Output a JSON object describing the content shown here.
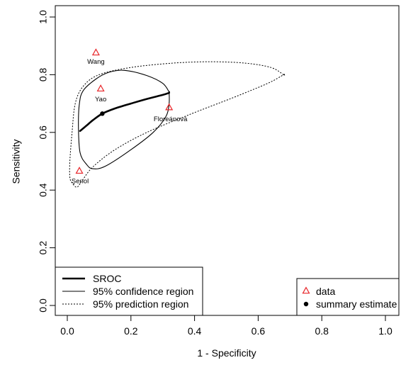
{
  "chart_data": {
    "type": "scatter",
    "title": "",
    "xlabel": "1 - Specificity",
    "ylabel": "Sensitivity",
    "xlim": [
      0.0,
      1.0
    ],
    "ylim": [
      0.0,
      1.0
    ],
    "xticks": [
      "0.0",
      "0.2",
      "0.4",
      "0.6",
      "0.8",
      "1.0"
    ],
    "yticks": [
      "0.0",
      "0.2",
      "0.4",
      "0.6",
      "0.8",
      "1.0"
    ],
    "grid": false,
    "data_points": [
      {
        "label": "Wang",
        "x": 0.09,
        "y": 0.875
      },
      {
        "label": "Yao",
        "x": 0.105,
        "y": 0.75
      },
      {
        "label": "Floreánová",
        "x": 0.32,
        "y": 0.685
      },
      {
        "label": "Şenol",
        "x": 0.038,
        "y": 0.465
      }
    ],
    "summary_estimate": {
      "x": 0.11,
      "y": 0.665
    },
    "sroc_curve": [
      [
        0.04,
        0.605
      ],
      [
        0.06,
        0.623
      ],
      [
        0.08,
        0.642
      ],
      [
        0.11,
        0.665
      ],
      [
        0.15,
        0.683
      ],
      [
        0.2,
        0.7
      ],
      [
        0.25,
        0.716
      ],
      [
        0.3,
        0.73
      ],
      [
        0.32,
        0.737
      ]
    ],
    "confidence_region": [
      [
        0.32,
        0.74
      ],
      [
        0.3,
        0.77
      ],
      [
        0.25,
        0.797
      ],
      [
        0.18,
        0.815
      ],
      [
        0.13,
        0.808
      ],
      [
        0.09,
        0.785
      ],
      [
        0.05,
        0.745
      ],
      [
        0.038,
        0.7
      ],
      [
        0.035,
        0.62
      ],
      [
        0.04,
        0.53
      ],
      [
        0.06,
        0.49
      ],
      [
        0.08,
        0.474
      ],
      [
        0.12,
        0.483
      ],
      [
        0.2,
        0.54
      ],
      [
        0.27,
        0.6
      ],
      [
        0.31,
        0.655
      ],
      [
        0.32,
        0.7
      ],
      [
        0.32,
        0.74
      ]
    ],
    "prediction_region": [
      [
        0.68,
        0.8
      ],
      [
        0.64,
        0.825
      ],
      [
        0.56,
        0.84
      ],
      [
        0.45,
        0.845
      ],
      [
        0.33,
        0.84
      ],
      [
        0.2,
        0.825
      ],
      [
        0.1,
        0.8
      ],
      [
        0.05,
        0.76
      ],
      [
        0.025,
        0.7
      ],
      [
        0.015,
        0.6
      ],
      [
        0.008,
        0.5
      ],
      [
        0.008,
        0.445
      ],
      [
        0.015,
        0.425
      ],
      [
        0.03,
        0.41
      ],
      [
        0.045,
        0.43
      ],
      [
        0.08,
        0.48
      ],
      [
        0.15,
        0.54
      ],
      [
        0.25,
        0.6
      ],
      [
        0.38,
        0.66
      ],
      [
        0.52,
        0.72
      ],
      [
        0.63,
        0.77
      ],
      [
        0.68,
        0.8
      ]
    ],
    "legend_left": {
      "placement": "bottom-left",
      "entries": [
        {
          "label": "SROC",
          "style": "thick-solid"
        },
        {
          "label": "95% confidence region",
          "style": "solid"
        },
        {
          "label": "95% prediction region",
          "style": "dotted"
        }
      ]
    },
    "legend_right": {
      "placement": "bottom-right",
      "entries": [
        {
          "label": "data",
          "symbol": "triangle"
        },
        {
          "label": "summary estimate",
          "symbol": "dot"
        }
      ]
    },
    "colors": {
      "data_marker": "#e8262a",
      "line": "#000000",
      "background": "#ffffff"
    }
  }
}
